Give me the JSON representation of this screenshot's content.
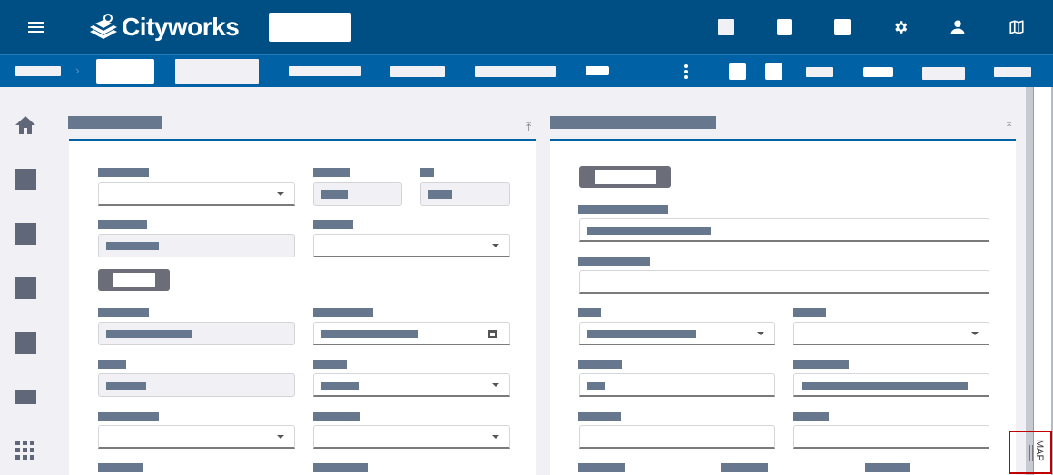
{
  "header": {
    "logo_text": "Cityworks",
    "menu_icon": "hamburger-icon",
    "icons": [
      "settings-gear-icon",
      "user-icon",
      "map-icon"
    ]
  },
  "nav": {
    "separator_icon": "chevron-right-icon",
    "more_icon": "kebab-menu-icon"
  },
  "sidebar": {
    "icons": [
      "home-icon",
      "square-icon",
      "square-icon",
      "square-icon",
      "square-icon",
      "rectangle-icon",
      "apps-grid-icon"
    ]
  },
  "map_tab": {
    "label": "MAP",
    "highlight_color": "#c00000"
  },
  "colors": {
    "header": "#004f84",
    "nav": "#0062a5",
    "accent": "#0062a5"
  }
}
